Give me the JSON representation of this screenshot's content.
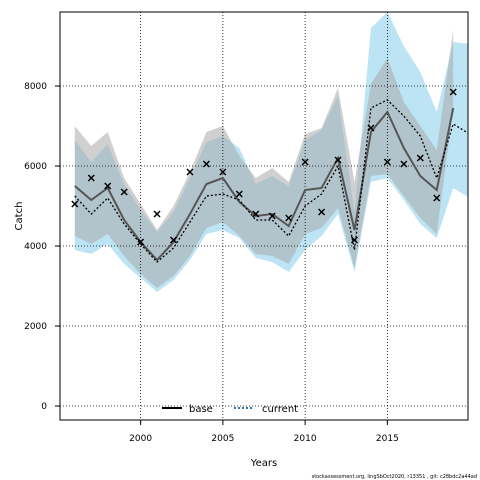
{
  "chart_data": {
    "type": "line",
    "title": "",
    "xlabel": "Years",
    "ylabel": "Catch",
    "xlim": [
      1995.1,
      2019.9
    ],
    "ylim": [
      -350,
      9850
    ],
    "xticks": [
      2000,
      2005,
      2010,
      2015
    ],
    "yticks": [
      0,
      2000,
      4000,
      6000,
      8000
    ],
    "grid": true,
    "legend_position": "bottom-center",
    "x": [
      1996,
      1997,
      1998,
      1999,
      2000,
      2001,
      2002,
      2003,
      2004,
      2005,
      2006,
      2007,
      2008,
      2009,
      2010,
      2011,
      2012,
      2013,
      2014,
      2015,
      2016,
      2017,
      2018,
      2019
    ],
    "series": [
      {
        "name": "base",
        "color": "#000000",
        "dash": "solid",
        "values": [
          5500,
          5150,
          5450,
          4650,
          4100,
          3650,
          4100,
          4800,
          5550,
          5700,
          5100,
          4750,
          4800,
          4500,
          5400,
          5450,
          6200,
          4400,
          6850,
          7350,
          6450,
          5750,
          5400,
          7450
        ],
        "lower": [
          4250,
          4050,
          4300,
          3750,
          3300,
          2950,
          3250,
          3750,
          4450,
          4600,
          4250,
          3800,
          3750,
          3550,
          4300,
          4450,
          4950,
          3450,
          5750,
          5800,
          5250,
          4700,
          4300,
          7450
        ],
        "upper": [
          7000,
          6500,
          6850,
          5700,
          5050,
          4400,
          5000,
          5850,
          6850,
          7000,
          6250,
          5700,
          5950,
          5600,
          6800,
          6950,
          7950,
          5600,
          8050,
          8700,
          7600,
          7000,
          6400,
          9400
        ]
      },
      {
        "name": "current",
        "color": "#1f78b4",
        "dash": "dotted",
        "values": [
          5250,
          4800,
          5200,
          4550,
          4050,
          3600,
          3950,
          4600,
          5250,
          5300,
          5150,
          4650,
          4650,
          4250,
          5000,
          5300,
          6000,
          3900,
          7450,
          7650,
          7250,
          6750,
          5700,
          7050
        ],
        "lower": [
          3900,
          3800,
          4050,
          3550,
          3200,
          2850,
          3150,
          3650,
          4300,
          4400,
          4200,
          3700,
          3600,
          3350,
          3900,
          4250,
          4800,
          3350,
          5600,
          5700,
          5150,
          4550,
          4200,
          5450
        ],
        "upper": [
          6650,
          6100,
          6550,
          5550,
          4900,
          4350,
          4850,
          5700,
          6600,
          6750,
          6450,
          5550,
          5750,
          5500,
          6650,
          6900,
          7750,
          4850,
          9450,
          9850,
          9000,
          8350,
          7350,
          9100
        ]
      }
    ],
    "observed": {
      "marker": "x",
      "values": [
        5050,
        5700,
        5500,
        5350,
        4100,
        4800,
        4150,
        5850,
        6050,
        5850,
        5300,
        4800,
        4750,
        4700,
        6100,
        4850,
        6150,
        4150,
        6950,
        6100,
        6050,
        6200,
        5200,
        7850
      ]
    },
    "extra_x": 2020,
    "extra_current": 6800,
    "extra_current_lower": 5200,
    "extra_current_upper": 9050
  },
  "legend": {
    "base_label": "base",
    "current_label": "current"
  },
  "footer": {
    "credit": "stockassessment.org, lingSbOct2020, r13351 , git: c28bdc2a44ad"
  },
  "colors": {
    "base_band": "#a9a9a9",
    "current_band": "#87ceeb",
    "base_line": "#000000",
    "current_line": "#1f78b4",
    "grid": "#000000"
  }
}
